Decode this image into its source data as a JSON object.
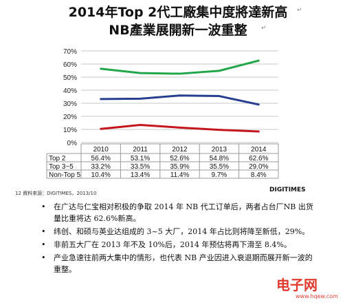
{
  "title_line1": "2014年Top 2代工廠集中度將達新高",
  "title_line2": "NB產業展開新一波重整",
  "chart_data": {
    "type": "line",
    "categories": [
      "2010",
      "2011",
      "2012",
      "2013",
      "2014"
    ],
    "ylim": [
      0,
      70
    ],
    "yticks": [
      "0%",
      "10%",
      "20%",
      "30%",
      "40%",
      "50%",
      "60%",
      "70%"
    ],
    "grid": true,
    "series": [
      {
        "name": "Top 2",
        "values": [
          56.4,
          53.1,
          52.6,
          54.8,
          62.6
        ],
        "labels": [
          "56.4%",
          "53.1%",
          "52.6%",
          "54.8%",
          "62.6%"
        ],
        "color": "#22a64a"
      },
      {
        "name": "Top 3~5",
        "values": [
          33.2,
          33.5,
          35.9,
          35.5,
          29.0
        ],
        "labels": [
          "33.2%",
          "33.5%",
          "35.9%",
          "35.5%",
          "29.0%"
        ],
        "color": "#283f8f"
      },
      {
        "name": "Non-Top 5",
        "values": [
          10.4,
          13.4,
          11.4,
          9.7,
          8.4
        ],
        "labels": [
          "10.4%",
          "13.4%",
          "11.4%",
          "9.7%",
          "8.4%"
        ],
        "color": "#c4161c"
      }
    ]
  },
  "source": "12 資料來源：DIGITIMES，2013/10",
  "brand": "DIGITIMES",
  "bullets": [
    "在广达与仁宝相对积极的争取 2014 年 NB 代工订单后，两者占台厂NB 出货量比重将达 62.6%新高。",
    "纬创、和硕与英业达组成的 3~5 大厂，2014 年占比则将降至新低，29%。",
    "非前五大厂在 2013 年不及 10%后，2014 年预估将再下滑至 8.4%。",
    "产业急速往前两大集中的情形，也代表 NB 产业因进入衰退期而展开新一波的重整。"
  ],
  "watermark": "电子网",
  "watermark_url": "www.hqew.com"
}
